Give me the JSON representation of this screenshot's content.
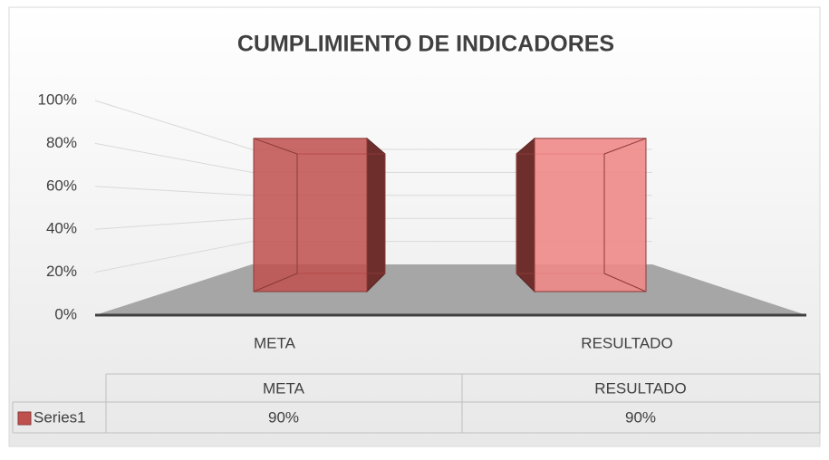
{
  "chart_data": {
    "type": "bar3d",
    "title": "CUMPLIMIENTO DE INDICADORES",
    "categories": [
      "META",
      "RESULTADO"
    ],
    "series": [
      {
        "name": "Series1",
        "color": "#c0504d",
        "values": [
          90,
          90
        ],
        "value_labels": [
          "90%",
          "90%"
        ]
      }
    ],
    "ylim": [
      0,
      100
    ],
    "yticks": [
      {
        "value": 0,
        "label": "0%"
      },
      {
        "value": 20,
        "label": "20%"
      },
      {
        "value": 40,
        "label": "40%"
      },
      {
        "value": 60,
        "label": "60%"
      },
      {
        "value": 80,
        "label": "80%"
      },
      {
        "value": 100,
        "label": "100%"
      }
    ],
    "grid": true,
    "data_table": true
  }
}
